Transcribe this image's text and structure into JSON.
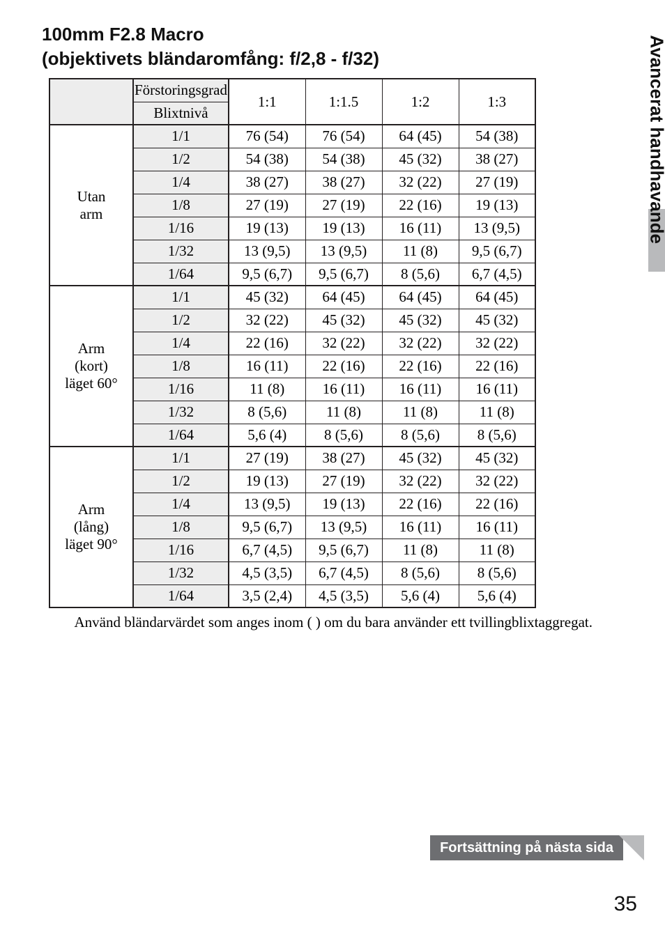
{
  "title": {
    "line1": "100mm F2.8 Macro",
    "line2": "(objektivets bländaromfång: f/2,8 - f/32)"
  },
  "header": {
    "mag_label": "Förstoringsgrad",
    "flash_label": "Blixtnivå",
    "ratios": [
      "1:1",
      "1:1.5",
      "1:2",
      "1:3"
    ]
  },
  "groups": [
    {
      "label_lines": [
        "Utan",
        "arm"
      ],
      "rows": [
        {
          "flash": "1/1",
          "v": [
            "76 (54)",
            "76 (54)",
            "64 (45)",
            "54 (38)"
          ]
        },
        {
          "flash": "1/2",
          "v": [
            "54 (38)",
            "54 (38)",
            "45 (32)",
            "38 (27)"
          ]
        },
        {
          "flash": "1/4",
          "v": [
            "38 (27)",
            "38 (27)",
            "32 (22)",
            "27 (19)"
          ]
        },
        {
          "flash": "1/8",
          "v": [
            "27 (19)",
            "27 (19)",
            "22 (16)",
            "19 (13)"
          ]
        },
        {
          "flash": "1/16",
          "v": [
            "19 (13)",
            "19 (13)",
            "16 (11)",
            "13 (9,5)"
          ]
        },
        {
          "flash": "1/32",
          "v": [
            "13 (9,5)",
            "13 (9,5)",
            "11 (8)",
            "9,5 (6,7)"
          ]
        },
        {
          "flash": "1/64",
          "v": [
            "9,5 (6,7)",
            "9,5 (6,7)",
            "8 (5,6)",
            "6,7 (4,5)"
          ]
        }
      ]
    },
    {
      "label_lines": [
        "Arm",
        "(kort)",
        "läget 60°"
      ],
      "rows": [
        {
          "flash": "1/1",
          "v": [
            "45 (32)",
            "64 (45)",
            "64 (45)",
            "64 (45)"
          ]
        },
        {
          "flash": "1/2",
          "v": [
            "32 (22)",
            "45 (32)",
            "45 (32)",
            "45 (32)"
          ]
        },
        {
          "flash": "1/4",
          "v": [
            "22 (16)",
            "32 (22)",
            "32 (22)",
            "32 (22)"
          ]
        },
        {
          "flash": "1/8",
          "v": [
            "16 (11)",
            "22 (16)",
            "22 (16)",
            "22 (16)"
          ]
        },
        {
          "flash": "1/16",
          "v": [
            "11 (8)",
            "16 (11)",
            "16 (11)",
            "16 (11)"
          ]
        },
        {
          "flash": "1/32",
          "v": [
            "8 (5,6)",
            "11 (8)",
            "11 (8)",
            "11 (8)"
          ]
        },
        {
          "flash": "1/64",
          "v": [
            "5,6 (4)",
            "8 (5,6)",
            "8 (5,6)",
            "8 (5,6)"
          ]
        }
      ]
    },
    {
      "label_lines": [
        "Arm",
        "(lång)",
        "läget 90°"
      ],
      "rows": [
        {
          "flash": "1/1",
          "v": [
            "27 (19)",
            "38 (27)",
            "45 (32)",
            "45 (32)"
          ]
        },
        {
          "flash": "1/2",
          "v": [
            "19 (13)",
            "27 (19)",
            "32 (22)",
            "32 (22)"
          ]
        },
        {
          "flash": "1/4",
          "v": [
            "13 (9,5)",
            "19 (13)",
            "22 (16)",
            "22 (16)"
          ]
        },
        {
          "flash": "1/8",
          "v": [
            "9,5 (6,7)",
            "13 (9,5)",
            "16 (11)",
            "16 (11)"
          ]
        },
        {
          "flash": "1/16",
          "v": [
            "6,7 (4,5)",
            "9,5 (6,7)",
            "11 (8)",
            "11 (8)"
          ]
        },
        {
          "flash": "1/32",
          "v": [
            "4,5 (3,5)",
            "6,7 (4,5)",
            "8 (5,6)",
            "8 (5,6)"
          ]
        },
        {
          "flash": "1/64",
          "v": [
            "3,5 (2,4)",
            "4,5 (3,5)",
            "5,6 (4)",
            "5,6 (4)"
          ]
        }
      ]
    }
  ],
  "footnote": "Använd bländarvärdet som anges inom ( ) om du bara använder ett tvillingblixtaggregat.",
  "continuation": "Fortsättning på nästa sida",
  "side_tab": "Avancerat handhavande",
  "page_number": "35",
  "colors": {
    "shade_bg": "#ededed",
    "border": "#231f20",
    "banner_bg": "#6d6e71",
    "banner_tri": "#b9babc",
    "tab_grey": "#b9babc"
  }
}
